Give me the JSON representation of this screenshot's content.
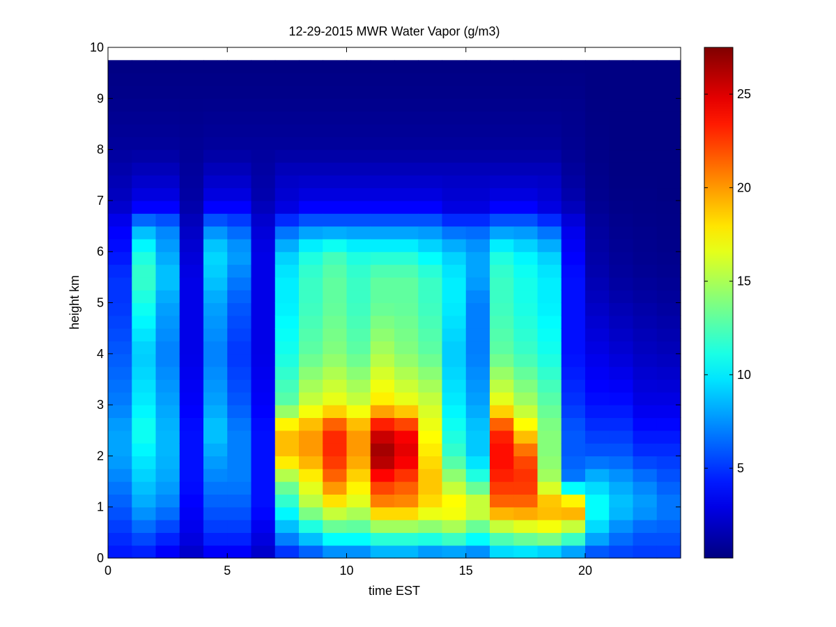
{
  "chart_data": {
    "type": "heatmap",
    "title": "12-29-2015 MWR Water Vapor (g/m3)",
    "xlabel": "time EST",
    "ylabel": "height km",
    "xlim": [
      0,
      24
    ],
    "ylim": [
      0,
      10
    ],
    "x_ticks": [
      0,
      5,
      10,
      15,
      20
    ],
    "y_ticks": [
      0,
      1,
      2,
      3,
      4,
      5,
      6,
      7,
      8,
      9,
      10
    ],
    "colormap": "jet",
    "colorbar": {
      "range": [
        0.2,
        27.5
      ],
      "ticks": [
        5,
        10,
        15,
        20,
        25
      ],
      "colors": [
        "#00008f",
        "#0000ff",
        "#00ffff",
        "#ffff00",
        "#ff0000",
        "#800000"
      ]
    },
    "x": [
      0.5,
      1.5,
      2.5,
      3.5,
      4.5,
      5.5,
      6.5,
      7.5,
      8.5,
      9.5,
      10.5,
      11.5,
      12.5,
      13.5,
      14.5,
      15.5,
      16.5,
      17.5,
      18.5,
      19.5,
      20.5,
      21.5,
      22.5,
      23.5
    ],
    "x_edges": [
      0,
      1,
      2,
      3,
      4,
      5,
      6,
      7,
      8,
      9,
      10,
      11,
      12,
      13,
      14,
      15,
      16,
      17,
      18,
      19,
      20,
      21,
      22,
      23,
      24
    ],
    "y_edges": [
      0,
      0.25,
      0.5,
      0.75,
      1,
      1.25,
      1.5,
      1.75,
      2,
      2.25,
      2.5,
      2.75,
      3,
      3.25,
      3.5,
      3.75,
      4,
      4.25,
      4.5,
      4.75,
      5,
      5.25,
      5.5,
      5.75,
      6,
      6.25,
      6.5,
      6.75,
      7,
      7.25,
      7.5,
      7.75,
      8,
      8.25,
      8.5,
      8.75,
      9,
      9.25,
      9.5,
      9.75
    ],
    "profile_levels": [
      0,
      0.5,
      1,
      1.5,
      2,
      2.5,
      3,
      4,
      5,
      5.5,
      6,
      6.5,
      6.8,
      7,
      7.5,
      8,
      9,
      9.75
    ],
    "profiles": [
      [
        4,
        5,
        6,
        7,
        8,
        8,
        7,
        6,
        5,
        5,
        4,
        3.5,
        2.5,
        2,
        1.5,
        1,
        0.5,
        0.3
      ],
      [
        4,
        6,
        8,
        9,
        10,
        11,
        10,
        9,
        11,
        12,
        11,
        8,
        4,
        3,
        2,
        1,
        0.5,
        0.3
      ],
      [
        3,
        5,
        7,
        8,
        8.5,
        8.5,
        8,
        7,
        8,
        9,
        8,
        7,
        4,
        3,
        2,
        1,
        0.5,
        0.3
      ],
      [
        2,
        3,
        3.5,
        4,
        4,
        4,
        3.5,
        3,
        3,
        3,
        2.5,
        2,
        1.5,
        1.2,
        1,
        0.8,
        0.5,
        0.3
      ],
      [
        3,
        5,
        6,
        7,
        8,
        9,
        8,
        7,
        8,
        9,
        9.5,
        7,
        4,
        3,
        2,
        1,
        0.5,
        0.3
      ],
      [
        3,
        5,
        6,
        7,
        7,
        7,
        6,
        5,
        6,
        7,
        8,
        6,
        4,
        3,
        2,
        1,
        0.5,
        0.3
      ],
      [
        2,
        3,
        4,
        4,
        4,
        4,
        3.5,
        3,
        3,
        3,
        3,
        2.5,
        2,
        1.5,
        1.2,
        1,
        0.5,
        0.3
      ],
      [
        4,
        8,
        11,
        14,
        19,
        19,
        13,
        11,
        10,
        10,
        9,
        6,
        3,
        2.5,
        2,
        1,
        0.5,
        0.3
      ],
      [
        5,
        10,
        15,
        17,
        20,
        20,
        16,
        13,
        12,
        12,
        11,
        7,
        4,
        3,
        2,
        1,
        0.5,
        0.3
      ],
      [
        6,
        12,
        17,
        21,
        23,
        23,
        17,
        14,
        13,
        13,
        12,
        7,
        4,
        3,
        2,
        1,
        0.5,
        0.3
      ],
      [
        6,
        12,
        16,
        18,
        20,
        20,
        16,
        13,
        12,
        12,
        11,
        7,
        4,
        3,
        2,
        1,
        0.5,
        0.3
      ],
      [
        7,
        13,
        20,
        23,
        27,
        25,
        18,
        15,
        13,
        13,
        11,
        7,
        4,
        3,
        2,
        1,
        0.5,
        0.3
      ],
      [
        7,
        13,
        20,
        22,
        25,
        24,
        17,
        14,
        13,
        13,
        11,
        7,
        4,
        3,
        2,
        1,
        0.5,
        0.3
      ],
      [
        6,
        13,
        18,
        19,
        18,
        17,
        16,
        13,
        12,
        12,
        10,
        7,
        4,
        3,
        2,
        1,
        0.5,
        0.3
      ],
      [
        6,
        14,
        18,
        15,
        12,
        11,
        10,
        9,
        10,
        10,
        9,
        6,
        3,
        2.5,
        2,
        1,
        0.5,
        0.3
      ],
      [
        6,
        12,
        17,
        12,
        9,
        9,
        8,
        7,
        7,
        8,
        8,
        6,
        3,
        2.5,
        2,
        1,
        0.5,
        0.3
      ],
      [
        8,
        14,
        21,
        23,
        24,
        23,
        17,
        13,
        12,
        12,
        11,
        7,
        4,
        3,
        2,
        1,
        0.5,
        0.3
      ],
      [
        8,
        15,
        21,
        23,
        22,
        18,
        15,
        12,
        11,
        11,
        10,
        7,
        4,
        3,
        2,
        1,
        0.5,
        0.3
      ],
      [
        7,
        16,
        20,
        15,
        14,
        14,
        13,
        11,
        10,
        10,
        9,
        6,
        3,
        2.5,
        2,
        1,
        0.5,
        0.3
      ],
      [
        6,
        14,
        21,
        7,
        6,
        6,
        5,
        4,
        4,
        4,
        3.5,
        3,
        2,
        1.5,
        1,
        0.7,
        0.5,
        0.3
      ],
      [
        5,
        9,
        11,
        9,
        6,
        5,
        4,
        3,
        2,
        1.5,
        1.2,
        1,
        0.8,
        0.6,
        0.5,
        0.4,
        0.3,
        0.3
      ],
      [
        5,
        7,
        9,
        8,
        6,
        5,
        4,
        2.5,
        1.5,
        1,
        0.8,
        0.6,
        0.5,
        0.4,
        0.3,
        0.3,
        0.3,
        0.3
      ],
      [
        5,
        6,
        8,
        7,
        5,
        4,
        3,
        2,
        1.2,
        0.8,
        0.6,
        0.5,
        0.4,
        0.4,
        0.3,
        0.3,
        0.3,
        0.3
      ],
      [
        5,
        6,
        7,
        6,
        5,
        4,
        3,
        1.8,
        1,
        0.7,
        0.5,
        0.4,
        0.4,
        0.3,
        0.3,
        0.3,
        0.3,
        0.3
      ]
    ]
  }
}
